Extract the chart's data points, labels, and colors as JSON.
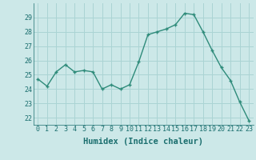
{
  "x": [
    0,
    1,
    2,
    3,
    4,
    5,
    6,
    7,
    8,
    9,
    10,
    11,
    12,
    13,
    14,
    15,
    16,
    17,
    18,
    19,
    20,
    21,
    22,
    23
  ],
  "y": [
    24.7,
    24.2,
    25.2,
    25.7,
    25.2,
    25.3,
    25.2,
    24.0,
    24.3,
    24.0,
    24.3,
    25.9,
    27.8,
    28.0,
    28.2,
    28.5,
    29.3,
    29.2,
    28.0,
    26.7,
    25.5,
    24.6,
    23.1,
    21.8
  ],
  "line_color": "#2e8b7a",
  "marker": "+",
  "marker_size": 3.5,
  "marker_lw": 1.0,
  "line_width": 1.0,
  "bg_color": "#cce8e8",
  "grid_color": "#aad4d4",
  "xlabel": "Humidex (Indice chaleur)",
  "ylim": [
    21.5,
    30.0
  ],
  "xlim": [
    -0.5,
    23.5
  ],
  "yticks": [
    22,
    23,
    24,
    25,
    26,
    27,
    28,
    29
  ],
  "xticks": [
    0,
    1,
    2,
    3,
    4,
    5,
    6,
    7,
    8,
    9,
    10,
    11,
    12,
    13,
    14,
    15,
    16,
    17,
    18,
    19,
    20,
    21,
    22,
    23
  ],
  "tick_color": "#1a6e6e",
  "label_color": "#1a6e6e",
  "tick_fontsize": 6.0,
  "xlabel_fontsize": 7.5,
  "xlabel_fontweight": "bold"
}
